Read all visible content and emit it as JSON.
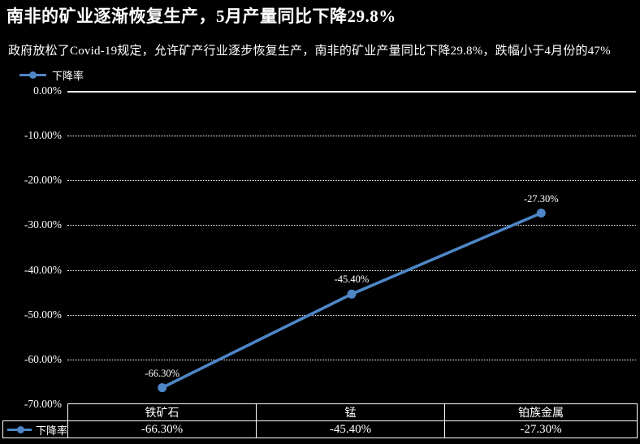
{
  "title": "南非的矿业逐渐恢复生产，5月产量同比下降29.8%",
  "subtitle": "政府放松了Covid-19规定，允许矿产行业逐步恢复生产，南非的矿业产量同比下降29.8%，跌幅小于4月份的47%",
  "legend": {
    "label": "下降率"
  },
  "colors": {
    "background": "#000000",
    "text": "#FFFFFF",
    "series": "#4E86C6"
  },
  "chart_data": {
    "type": "line",
    "title": "南非的矿业逐渐恢复生产，5月产量同比下降29.8%",
    "categories": [
      "铁矿石",
      "锰",
      "铂族金属"
    ],
    "series": [
      {
        "name": "下降率",
        "values": [
          -66.3,
          -45.4,
          -27.3
        ]
      }
    ],
    "data_labels": [
      "-66.30%",
      "-45.40%",
      "-27.30%"
    ],
    "y_ticks": [
      "0.00%",
      "-10.00%",
      "-20.00%",
      "-30.00%",
      "-40.00%",
      "-50.00%",
      "-60.00%",
      "-70.00%"
    ],
    "ylim": [
      -70,
      0
    ],
    "grid": true,
    "gridline_style": "dotted",
    "legend_position": "top-left",
    "xlabel": "",
    "ylabel": ""
  },
  "table": {
    "row_header": "下降率",
    "columns": [
      "铁矿石",
      "锰",
      "铂族金属"
    ],
    "values": [
      "-66.30%",
      "-45.40%",
      "-27.30%"
    ]
  }
}
